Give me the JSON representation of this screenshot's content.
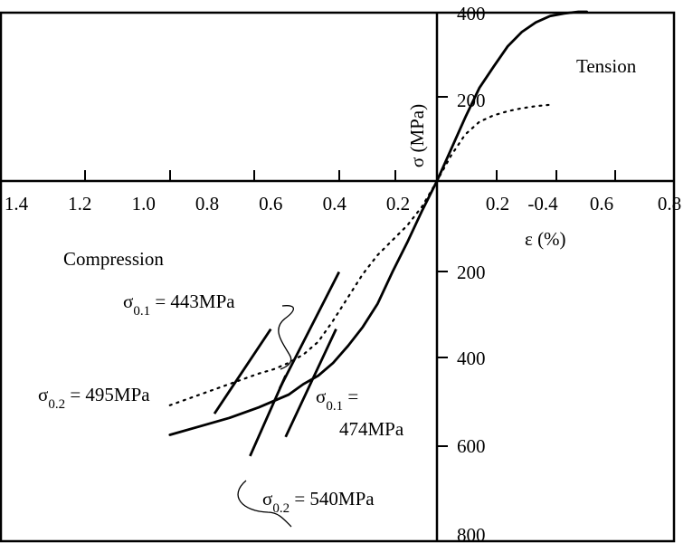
{
  "chart_data": {
    "type": "line",
    "x_axis": {
      "label": "ε (%)",
      "ticks_left": [
        "1.4",
        "1.2",
        "1.0",
        "0.8",
        "0.6",
        "0.4",
        "0.2"
      ],
      "ticks_right": [
        "0.2",
        "-0.4",
        "0.6",
        "0.8"
      ]
    },
    "y_axis": {
      "label": "σ (MPa)",
      "ticks_top": [
        "400",
        "200"
      ],
      "ticks_bottom": [
        "200",
        "400",
        "600",
        "800"
      ]
    },
    "regions": {
      "tension": "Tension",
      "compression": "Compression"
    },
    "series": [
      {
        "style": "solid",
        "tension": {
          "strain": [
            0,
            0.05,
            0.1,
            0.15,
            0.2,
            0.25,
            0.3,
            0.35,
            0.4,
            0.45,
            0.5,
            0.53
          ],
          "stress": [
            0,
            75,
            150,
            220,
            270,
            318,
            352,
            375,
            390,
            396,
            400,
            400
          ]
        },
        "compression": {
          "strain": [
            0,
            0.05,
            0.1,
            0.15,
            0.2,
            0.25,
            0.3,
            0.35,
            0.4,
            0.45,
            0.5,
            0.6,
            0.7,
            0.8,
            0.9
          ],
          "stress": [
            0,
            70,
            145,
            215,
            290,
            345,
            390,
            430,
            460,
            480,
            505,
            535,
            560,
            580,
            600
          ]
        }
      },
      {
        "style": "dotted",
        "tension": {
          "strain": [
            0,
            0.05,
            0.1,
            0.15,
            0.2,
            0.25,
            0.3,
            0.35,
            0.4
          ],
          "stress": [
            0,
            60,
            110,
            140,
            155,
            165,
            172,
            177,
            180
          ]
        },
        "compression": {
          "strain": [
            0,
            0.05,
            0.1,
            0.15,
            0.2,
            0.25,
            0.3,
            0.35,
            0.4,
            0.45,
            0.5,
            0.55,
            0.6,
            0.7,
            0.8,
            0.9
          ],
          "stress": [
            0,
            60,
            105,
            140,
            175,
            220,
            275,
            330,
            380,
            410,
            430,
            445,
            455,
            480,
            505,
            530
          ]
        }
      }
    ],
    "proof_lines": [
      {
        "offset": 0.1,
        "strain_range": [
          0.33,
          0.53
        ],
        "stress_range": [
          215,
          490
        ]
      },
      {
        "offset": 0.2,
        "strain_range": [
          0.56,
          0.75
        ],
        "stress_range": [
          350,
          550
        ]
      },
      {
        "offset": 0.1,
        "strain_range": [
          0.34,
          0.51
        ],
        "stress_range": [
          350,
          605
        ]
      },
      {
        "offset": 0.2,
        "strain_range": [
          0.51,
          0.63
        ],
        "stress_range": [
          460,
          650
        ]
      }
    ],
    "annotations": [
      {
        "name": "sigma01-dotted",
        "sym": "σ",
        "sub": "0.1",
        "rest": " = 443MPa"
      },
      {
        "name": "sigma02-dotted",
        "sym": "σ",
        "sub": "0.2",
        "rest": " = 495MPa"
      },
      {
        "name": "sigma01-solid",
        "sym": "σ",
        "sub": "0.1",
        "rest": " =",
        "line2": "474MPa"
      },
      {
        "name": "sigma02-solid",
        "sym": "σ",
        "sub": "0.2",
        "rest": " = 540MPa"
      }
    ]
  }
}
